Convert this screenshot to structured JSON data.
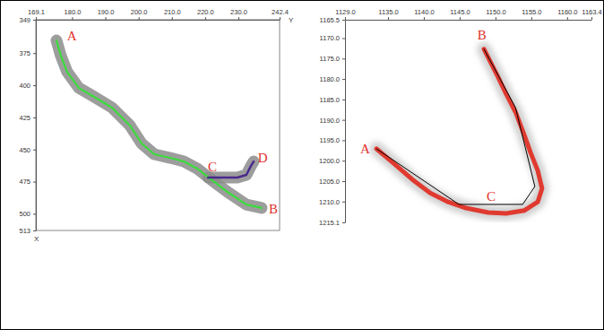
{
  "chart_data": [
    {
      "type": "line",
      "xlabel": "Y",
      "ylabel": "X",
      "xlim": [
        169.1,
        242.4
      ],
      "xticks": [
        169.1,
        {
          "value": 180,
          "label": "180.0"
        },
        {
          "value": 190,
          "label": "190.0"
        },
        {
          "value": 200,
          "label": "200.0"
        },
        {
          "value": 210,
          "label": "210.0"
        },
        {
          "value": 220,
          "label": "220.0"
        },
        {
          "value": 230,
          "label": "230.0"
        },
        242.4
      ],
      "ylim": [
        513,
        349
      ],
      "yticks": [
        349,
        375,
        400,
        425,
        450,
        475,
        500,
        513
      ],
      "series": [
        {
          "color": "#3bdc3b",
          "x": [
            175.3,
            176.6,
            178.5,
            182.0,
            186.6,
            192.0,
            197.4,
            200.9,
            204.7,
            209.5,
            213.6,
            217.6,
            221.7,
            227.1,
            232.4,
            237.0
          ],
          "values": [
            365.1,
            376.9,
            389.5,
            402.0,
            409.0,
            417.4,
            431.3,
            445.3,
            453.7,
            456.5,
            459.3,
            464.8,
            473.2,
            483.7,
            492.8,
            495.5
          ]
        },
        {
          "color": "#4a2a8c",
          "x": [
            220.9,
            229.7,
            232.4,
            233.8,
            234.6
          ],
          "values": [
            471.8,
            471.8,
            469.7,
            462.7,
            459.3
          ]
        }
      ],
      "annotations": [
        {
          "text": "A",
          "x": 179.9,
          "y": 363.0
        },
        {
          "text": "B",
          "x": 240.5,
          "y": 497.6
        },
        {
          "text": "C",
          "x": 222.2,
          "y": 464.8
        },
        {
          "text": "D",
          "x": 237.3,
          "y": 457.9
        }
      ]
    },
    {
      "type": "line",
      "xlim": [
        1129.0,
        1163.4
      ],
      "xticks": [
        {
          "value": 1129,
          "label": "1129.0"
        },
        {
          "value": 1135,
          "label": "1135.0"
        },
        {
          "value": 1140,
          "label": "1140.0"
        },
        {
          "value": 1145,
          "label": "1145.0"
        },
        {
          "value": 1150,
          "label": "1150.0"
        },
        {
          "value": 1155,
          "label": "1155.0"
        },
        {
          "value": 1160,
          "label": "1160.0"
        },
        1163.4
      ],
      "ylim": [
        1215.1,
        1165.5
      ],
      "yticks": [
        1165.5,
        {
          "value": 1170,
          "label": "1170.0"
        },
        {
          "value": 1175,
          "label": "1175.0"
        },
        {
          "value": 1180,
          "label": "1180.0"
        },
        {
          "value": 1185,
          "label": "1185.0"
        },
        {
          "value": 1190,
          "label": "1190.0"
        },
        {
          "value": 1195,
          "label": "1195.0"
        },
        {
          "value": 1200,
          "label": "1200.0"
        },
        {
          "value": 1205,
          "label": "1205.0"
        },
        {
          "value": 1210,
          "label": "1210.0"
        },
        1215.1
      ],
      "series": [
        {
          "color": "#e03a30",
          "x": [
            1133.4,
            1135.9,
            1138.4,
            1140.9,
            1143.4,
            1145.9,
            1149.0,
            1151.5,
            1154.0,
            1155.9,
            1156.5,
            1155.9,
            1154.9,
            1154.0,
            1152.8,
            1151.5,
            1150.3,
            1148.4
          ],
          "values": [
            1197.1,
            1200.8,
            1204.6,
            1207.9,
            1210.1,
            1211.6,
            1212.7,
            1212.9,
            1212.2,
            1210.1,
            1206.8,
            1202.4,
            1198.0,
            1193.6,
            1188.1,
            1183.7,
            1179.3,
            1172.7
          ]
        },
        {
          "color": "#000000",
          "x": [
            1133.4,
            1144.9,
            1153.8,
            1155.5,
            1152.8,
            1148.4
          ],
          "values": [
            1197.1,
            1210.7,
            1210.7,
            1206.3,
            1187.0,
            1172.7
          ]
        }
      ],
      "annotations": [
        {
          "text": "A",
          "x": 1131.8,
          "y": 1197.5
        },
        {
          "text": "B",
          "x": 1148.1,
          "y": 1169.5
        },
        {
          "text": "C",
          "x": 1149.4,
          "y": 1209.0
        }
      ]
    }
  ]
}
